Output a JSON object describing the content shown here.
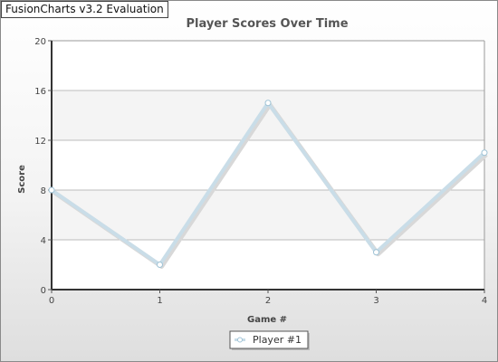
{
  "watermark": "FusionCharts v3.2 Evaluation",
  "chart_data": {
    "type": "line",
    "title": "Player Scores Over Time",
    "xlabel": "Game #",
    "ylabel": "Score",
    "x": [
      0,
      1,
      2,
      3,
      4
    ],
    "x_tick_labels": [
      "0",
      "1",
      "2",
      "3",
      "4"
    ],
    "ylim": [
      0,
      20
    ],
    "y_ticks": [
      0,
      4,
      8,
      12,
      16,
      20
    ],
    "y_tick_labels": [
      "0",
      "4",
      "8",
      "12",
      "16",
      "20"
    ],
    "grid": true,
    "legend_position": "bottom-center",
    "series": [
      {
        "name": "Player #1",
        "values": [
          8,
          2,
          15,
          3,
          11
        ],
        "color": "#c9dde8"
      }
    ]
  }
}
